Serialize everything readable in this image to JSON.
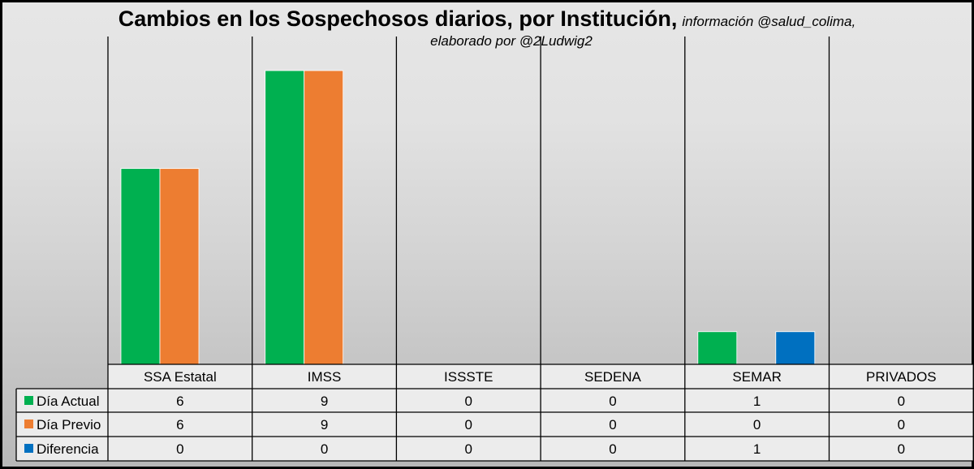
{
  "title": "Cambios en los Sospechosos diarios, por Institución,",
  "subtitle_line1": "información @salud_colima,",
  "subtitle_line2": "elaborado por @2Ludwig2",
  "chart_data": {
    "type": "bar",
    "categories": [
      "SSA Estatal",
      "IMSS",
      "ISSSTE",
      "SEDENA",
      "SEMAR",
      "PRIVADOS"
    ],
    "series": [
      {
        "name": "Día Actual",
        "values": [
          6,
          9,
          0,
          0,
          1,
          0
        ],
        "color": "#00b050"
      },
      {
        "name": "Día Previo",
        "values": [
          6,
          9,
          0,
          0,
          0,
          0
        ],
        "color": "#ed7d31"
      },
      {
        "name": "Diferencia",
        "values": [
          0,
          0,
          0,
          0,
          1,
          0
        ],
        "color": "#0070c0"
      }
    ],
    "ylim": [
      0,
      10
    ],
    "legend": "data-table",
    "grid": "vertical category separators"
  }
}
